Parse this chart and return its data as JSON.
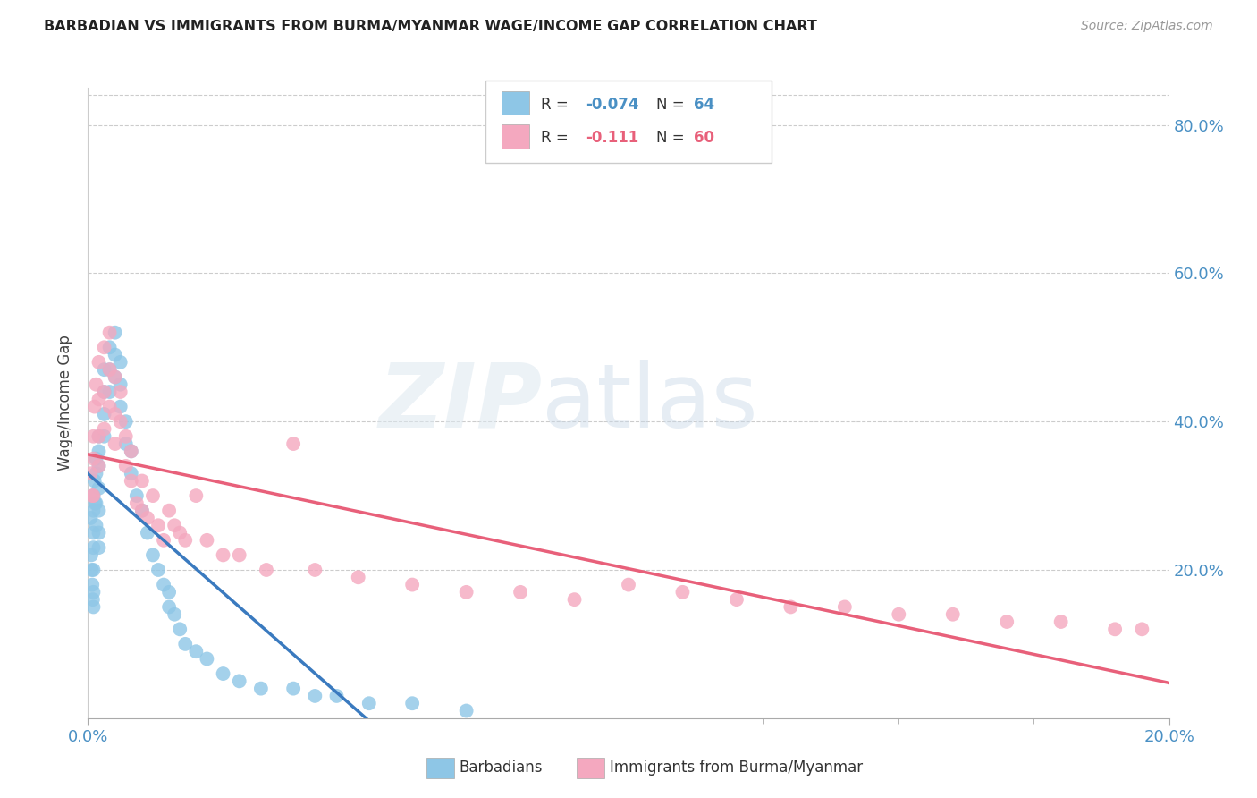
{
  "title": "BARBADIAN VS IMMIGRANTS FROM BURMA/MYANMAR WAGE/INCOME GAP CORRELATION CHART",
  "source": "Source: ZipAtlas.com",
  "ylabel": "Wage/Income Gap",
  "legend_label1": "Barbadians",
  "legend_label2": "Immigrants from Burma/Myanmar",
  "color_blue": "#8ec6e6",
  "color_pink": "#f4a8bf",
  "trend_color_blue": "#3a7abf",
  "trend_color_pink": "#e8607a",
  "trend_color_dashed": "#a0bcd8",
  "background": "#ffffff",
  "xlim": [
    0.0,
    0.2
  ],
  "ylim": [
    0.0,
    0.85
  ],
  "right_ytick_vals": [
    0.2,
    0.4,
    0.6,
    0.8
  ],
  "right_ytick_labels": [
    "20.0%",
    "40.0%",
    "60.0%",
    "80.0%"
  ],
  "blue_x": [
    0.0005,
    0.0006,
    0.0007,
    0.0008,
    0.0009,
    0.001,
    0.001,
    0.001,
    0.001,
    0.001,
    0.001,
    0.001,
    0.0012,
    0.0013,
    0.0015,
    0.0015,
    0.0015,
    0.0015,
    0.002,
    0.002,
    0.002,
    0.002,
    0.002,
    0.002,
    0.002,
    0.003,
    0.003,
    0.003,
    0.003,
    0.004,
    0.004,
    0.004,
    0.005,
    0.005,
    0.005,
    0.006,
    0.006,
    0.006,
    0.007,
    0.007,
    0.008,
    0.008,
    0.009,
    0.01,
    0.011,
    0.012,
    0.013,
    0.014,
    0.015,
    0.015,
    0.016,
    0.017,
    0.018,
    0.02,
    0.022,
    0.025,
    0.028,
    0.032,
    0.038,
    0.042,
    0.046,
    0.052,
    0.06,
    0.07
  ],
  "blue_y": [
    0.27,
    0.22,
    0.2,
    0.18,
    0.16,
    0.3,
    0.28,
    0.25,
    0.23,
    0.2,
    0.17,
    0.15,
    0.32,
    0.29,
    0.35,
    0.33,
    0.29,
    0.26,
    0.38,
    0.36,
    0.34,
    0.31,
    0.28,
    0.25,
    0.23,
    0.47,
    0.44,
    0.41,
    0.38,
    0.5,
    0.47,
    0.44,
    0.52,
    0.49,
    0.46,
    0.48,
    0.45,
    0.42,
    0.4,
    0.37,
    0.36,
    0.33,
    0.3,
    0.28,
    0.25,
    0.22,
    0.2,
    0.18,
    0.17,
    0.15,
    0.14,
    0.12,
    0.1,
    0.09,
    0.08,
    0.06,
    0.05,
    0.04,
    0.04,
    0.03,
    0.03,
    0.02,
    0.02,
    0.01
  ],
  "pink_x": [
    0.0005,
    0.0008,
    0.001,
    0.001,
    0.001,
    0.0012,
    0.0015,
    0.002,
    0.002,
    0.002,
    0.002,
    0.003,
    0.003,
    0.003,
    0.004,
    0.004,
    0.004,
    0.005,
    0.005,
    0.005,
    0.006,
    0.006,
    0.007,
    0.007,
    0.008,
    0.008,
    0.009,
    0.01,
    0.01,
    0.011,
    0.012,
    0.013,
    0.014,
    0.015,
    0.016,
    0.017,
    0.018,
    0.02,
    0.022,
    0.025,
    0.028,
    0.033,
    0.038,
    0.042,
    0.05,
    0.06,
    0.07,
    0.08,
    0.09,
    0.1,
    0.11,
    0.12,
    0.13,
    0.14,
    0.15,
    0.16,
    0.17,
    0.18,
    0.19,
    0.195
  ],
  "pink_y": [
    0.33,
    0.3,
    0.38,
    0.35,
    0.3,
    0.42,
    0.45,
    0.48,
    0.43,
    0.38,
    0.34,
    0.5,
    0.44,
    0.39,
    0.52,
    0.47,
    0.42,
    0.46,
    0.41,
    0.37,
    0.44,
    0.4,
    0.38,
    0.34,
    0.36,
    0.32,
    0.29,
    0.32,
    0.28,
    0.27,
    0.3,
    0.26,
    0.24,
    0.28,
    0.26,
    0.25,
    0.24,
    0.3,
    0.24,
    0.22,
    0.22,
    0.2,
    0.37,
    0.2,
    0.19,
    0.18,
    0.17,
    0.17,
    0.16,
    0.18,
    0.17,
    0.16,
    0.15,
    0.15,
    0.14,
    0.14,
    0.13,
    0.13,
    0.12,
    0.12
  ]
}
